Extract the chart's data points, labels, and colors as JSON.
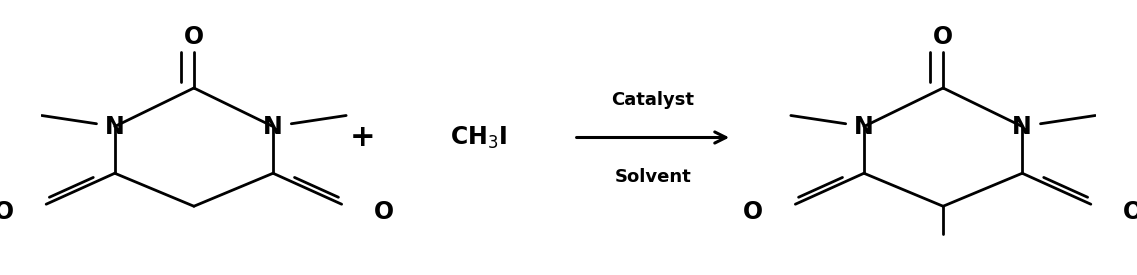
{
  "bg_color": "#ffffff",
  "line_color": "#000000",
  "figsize": [
    11.37,
    2.75
  ],
  "dpi": 100,
  "plus_text": "+",
  "reagent_text": "CH$_3$I",
  "catalyst_text": "Catalyst",
  "solvent_text": "Solvent",
  "font_size_atom_N": 17,
  "font_size_atom_O": 17,
  "font_size_plus": 22,
  "font_size_reagent": 17,
  "font_size_arrow_label": 13,
  "lw": 2.0
}
